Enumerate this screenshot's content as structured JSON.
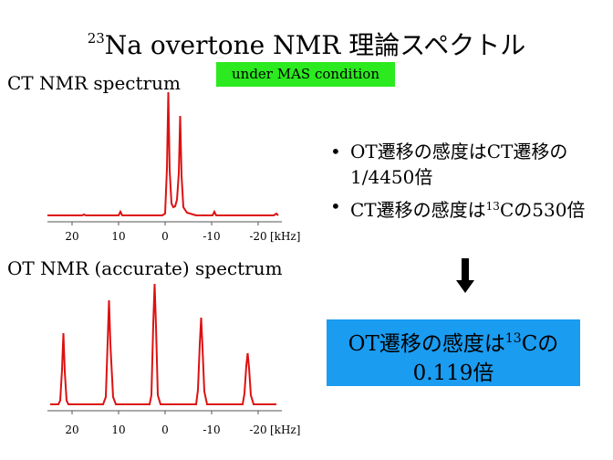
{
  "title": {
    "superscript": "23",
    "text": "Na overtone NMR 理論スペクトル"
  },
  "mas_badge": "under MAS condition",
  "ct_panel": {
    "label": "CT NMR spectrum",
    "ticks": [
      "20",
      "10",
      "0",
      "-10",
      "-20"
    ],
    "unit": "[kHz]",
    "line_color": "#dd1111"
  },
  "ot_panel": {
    "label": "OT NMR (accurate) spectrum",
    "ticks": [
      "20",
      "10",
      "0",
      "-10",
      "-20"
    ],
    "unit": "[kHz]",
    "line_color": "#dd1111"
  },
  "bullets": [
    {
      "marker": "•",
      "before": "OT遷移の感度はCT遷移の1/4450倍",
      "sup": "",
      "after": ""
    },
    {
      "marker": "•",
      "before": "CT遷移の感度は",
      "sup": "13",
      "after": "Cの530倍"
    }
  ],
  "result": {
    "before": "OT遷移の感度は",
    "sup": "13",
    "after_line1": "Cの",
    "line2": "0.119倍"
  },
  "colors": {
    "badge_bg": "#2bea1f",
    "result_bg": "#1a9cf1",
    "spectrum": "#dd1111"
  }
}
